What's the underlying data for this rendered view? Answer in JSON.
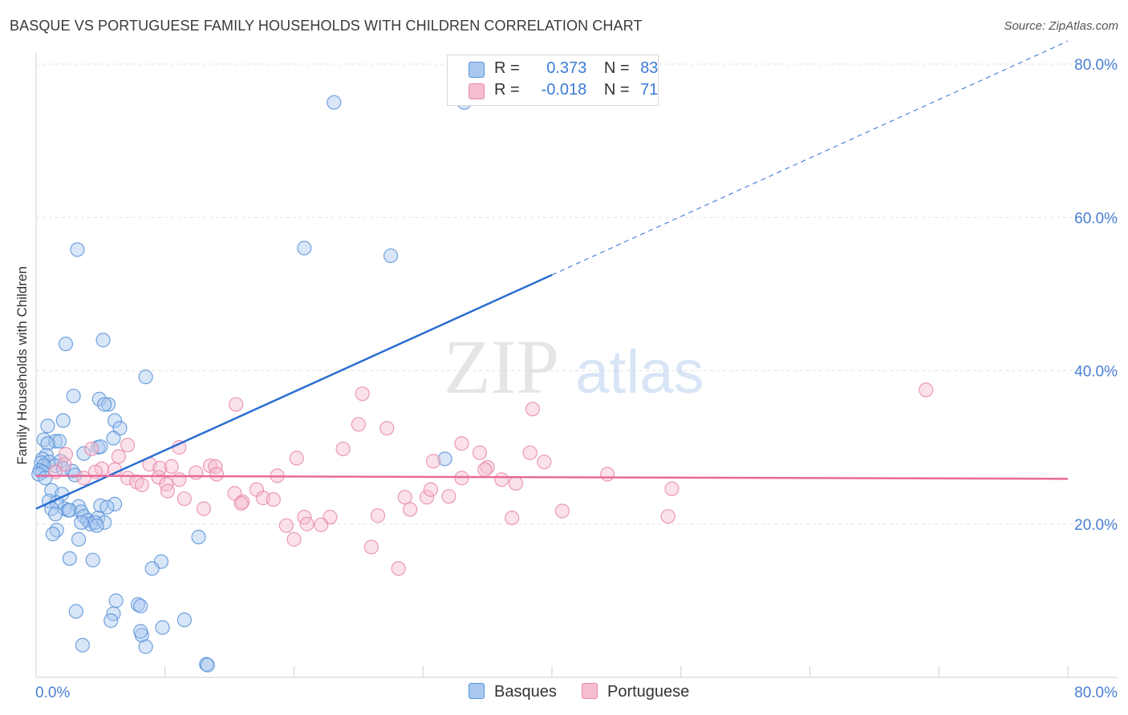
{
  "title": "BASQUE VS PORTUGUESE FAMILY HOUSEHOLDS WITH CHILDREN CORRELATION CHART",
  "source": "Source: ZipAtlas.com",
  "watermark": {
    "zip": "ZIP",
    "atlas": "atlas"
  },
  "legend": {
    "rows": [
      {
        "r_label": "R =",
        "r_value": "0.373",
        "n_label": "N =",
        "n_value": "83"
      },
      {
        "r_label": "R =",
        "r_value": "-0.018",
        "n_label": "N =",
        "n_value": "71"
      }
    ]
  },
  "bottom_legend": [
    "Basques",
    "Portuguese"
  ],
  "colors": {
    "basques_fill": "#a8c8f0",
    "basques_stroke": "#5b93d8",
    "basques_line": "#2a6fd0",
    "portuguese_fill": "#f6bdd0",
    "portuguese_stroke": "#e68aab",
    "portuguese_line": "#e8699a",
    "tick_label": "#4a7fd4",
    "grid": "#e2e2e2"
  },
  "chart_data": {
    "type": "scatter",
    "title": "BASQUE VS PORTUGUESE FAMILY HOUSEHOLDS WITH CHILDREN CORRELATION CHART",
    "xlabel": "",
    "ylabel": "Family Households with Children",
    "xlim": [
      0,
      80
    ],
    "ylim": [
      0,
      80
    ],
    "x_tick_labels": [
      "0.0%",
      "80.0%"
    ],
    "y_tick_labels": [
      "20.0%",
      "40.0%",
      "60.0%",
      "80.0%"
    ],
    "y_ticks": [
      20,
      40,
      60,
      80
    ],
    "grid": true,
    "legend_position": "top-center",
    "series": [
      {
        "name": "Basques",
        "r": 0.373,
        "n": 83,
        "trend": {
          "x0": 0,
          "y0": 22.0,
          "x1": 40,
          "y1": 52.5,
          "dashed_to_x": 80
        },
        "points": [
          [
            23.1,
            75.0
          ],
          [
            33.2,
            75.0
          ],
          [
            3.2,
            55.8
          ],
          [
            20.8,
            56.0
          ],
          [
            27.5,
            55.0
          ],
          [
            2.3,
            43.5
          ],
          [
            5.2,
            44.0
          ],
          [
            8.5,
            39.2
          ],
          [
            2.9,
            36.7
          ],
          [
            4.9,
            36.3
          ],
          [
            5.6,
            35.6
          ],
          [
            5.3,
            35.6
          ],
          [
            6.1,
            33.5
          ],
          [
            2.1,
            33.5
          ],
          [
            0.9,
            32.8
          ],
          [
            6.5,
            32.5
          ],
          [
            1.5,
            30.8
          ],
          [
            0.6,
            31.0
          ],
          [
            1.8,
            30.8
          ],
          [
            6.0,
            31.2
          ],
          [
            4.8,
            30.0
          ],
          [
            5.0,
            30.1
          ],
          [
            0.9,
            30.5
          ],
          [
            3.7,
            29.2
          ],
          [
            0.8,
            29.0
          ],
          [
            0.5,
            28.5
          ],
          [
            1.0,
            28.1
          ],
          [
            1.9,
            28.2
          ],
          [
            0.4,
            28.0
          ],
          [
            1.5,
            27.6
          ],
          [
            2.1,
            27.2
          ],
          [
            0.6,
            27.6
          ],
          [
            0.3,
            27.0
          ],
          [
            0.5,
            26.8
          ],
          [
            2.8,
            26.9
          ],
          [
            0.2,
            26.5
          ],
          [
            3.0,
            26.4
          ],
          [
            0.7,
            26.0
          ],
          [
            31.7,
            28.5
          ],
          [
            1.2,
            24.4
          ],
          [
            2.0,
            23.9
          ],
          [
            1.0,
            23.0
          ],
          [
            1.6,
            22.8
          ],
          [
            3.3,
            22.3
          ],
          [
            6.1,
            22.6
          ],
          [
            1.2,
            22.0
          ],
          [
            2.2,
            22.0
          ],
          [
            2.5,
            21.8
          ],
          [
            2.6,
            21.8
          ],
          [
            3.5,
            21.6
          ],
          [
            5.0,
            22.4
          ],
          [
            5.5,
            22.2
          ],
          [
            1.5,
            21.3
          ],
          [
            3.7,
            21.0
          ],
          [
            4.0,
            20.5
          ],
          [
            4.8,
            20.8
          ],
          [
            4.2,
            20.0
          ],
          [
            4.6,
            20.2
          ],
          [
            5.3,
            20.2
          ],
          [
            4.7,
            19.8
          ],
          [
            3.5,
            20.2
          ],
          [
            1.6,
            19.2
          ],
          [
            1.3,
            18.7
          ],
          [
            12.6,
            18.3
          ],
          [
            3.3,
            18.0
          ],
          [
            2.6,
            15.5
          ],
          [
            4.4,
            15.3
          ],
          [
            9.7,
            15.1
          ],
          [
            9.0,
            14.2
          ],
          [
            6.2,
            10.0
          ],
          [
            7.9,
            9.5
          ],
          [
            8.1,
            9.3
          ],
          [
            3.1,
            8.6
          ],
          [
            6.0,
            8.3
          ],
          [
            5.8,
            7.4
          ],
          [
            11.5,
            7.5
          ],
          [
            9.8,
            6.5
          ],
          [
            8.2,
            5.5
          ],
          [
            8.1,
            6.0
          ],
          [
            3.6,
            4.2
          ],
          [
            8.5,
            4.0
          ],
          [
            13.2,
            1.7
          ],
          [
            13.3,
            1.6
          ]
        ]
      },
      {
        "name": "Portuguese",
        "r": -0.018,
        "n": 71,
        "trend": {
          "x0": 0,
          "y0": 26.3,
          "x1": 80,
          "y1": 25.9
        },
        "points": [
          [
            69.0,
            37.5
          ],
          [
            25.3,
            37.0
          ],
          [
            15.5,
            35.6
          ],
          [
            38.5,
            35.0
          ],
          [
            25.0,
            33.0
          ],
          [
            27.2,
            32.5
          ],
          [
            7.1,
            30.3
          ],
          [
            33.0,
            30.5
          ],
          [
            23.8,
            29.8
          ],
          [
            11.1,
            30.0
          ],
          [
            4.3,
            29.8
          ],
          [
            38.3,
            29.3
          ],
          [
            34.4,
            29.3
          ],
          [
            2.3,
            29.1
          ],
          [
            6.4,
            28.8
          ],
          [
            20.2,
            28.6
          ],
          [
            35.0,
            27.4
          ],
          [
            39.4,
            28.1
          ],
          [
            30.8,
            28.2
          ],
          [
            2.2,
            27.8
          ],
          [
            8.8,
            27.8
          ],
          [
            13.5,
            27.6
          ],
          [
            13.9,
            27.5
          ],
          [
            9.6,
            27.3
          ],
          [
            6.1,
            27.1
          ],
          [
            5.1,
            27.2
          ],
          [
            4.6,
            26.8
          ],
          [
            10.5,
            27.5
          ],
          [
            1.5,
            26.8
          ],
          [
            12.4,
            26.7
          ],
          [
            34.8,
            27.1
          ],
          [
            44.3,
            26.5
          ],
          [
            14.0,
            26.5
          ],
          [
            18.7,
            26.3
          ],
          [
            33.0,
            26.0
          ],
          [
            11.1,
            25.8
          ],
          [
            3.7,
            26.0
          ],
          [
            7.1,
            26.0
          ],
          [
            9.5,
            26.1
          ],
          [
            36.1,
            25.8
          ],
          [
            7.8,
            25.5
          ],
          [
            37.2,
            25.3
          ],
          [
            10.1,
            25.2
          ],
          [
            8.2,
            25.1
          ],
          [
            17.1,
            24.5
          ],
          [
            15.4,
            24.0
          ],
          [
            10.2,
            24.3
          ],
          [
            32.0,
            23.6
          ],
          [
            28.6,
            23.5
          ],
          [
            49.3,
            24.6
          ],
          [
            16.0,
            22.9
          ],
          [
            17.6,
            23.4
          ],
          [
            30.3,
            23.5
          ],
          [
            11.5,
            23.3
          ],
          [
            18.4,
            23.2
          ],
          [
            15.9,
            22.7
          ],
          [
            29.0,
            21.9
          ],
          [
            13.0,
            22.0
          ],
          [
            40.8,
            21.7
          ],
          [
            36.9,
            20.8
          ],
          [
            49.0,
            21.0
          ],
          [
            26.5,
            21.1
          ],
          [
            20.8,
            20.9
          ],
          [
            22.8,
            20.9
          ],
          [
            19.4,
            19.8
          ],
          [
            21.0,
            20.0
          ],
          [
            22.1,
            19.9
          ],
          [
            20.0,
            18.0
          ],
          [
            26.0,
            17.0
          ],
          [
            28.1,
            14.2
          ],
          [
            30.6,
            24.5
          ]
        ]
      }
    ]
  }
}
